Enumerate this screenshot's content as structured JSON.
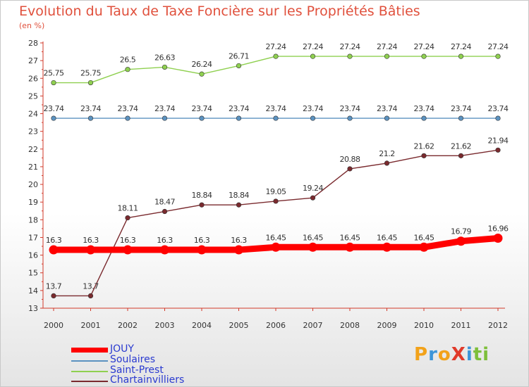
{
  "title": "Evolution du Taux de Taxe Foncière sur les Propriétés Bâties",
  "subtitle": "(en %)",
  "logo": {
    "parts": [
      "P",
      "r",
      "o",
      "X",
      "i",
      "ti"
    ]
  },
  "chart_data": {
    "type": "line",
    "title": "Evolution du Taux de Taxe Foncière sur les Propriétés Bâties",
    "ylabel": "(en %)",
    "ylim": [
      13,
      28
    ],
    "yticks": [
      "13",
      "14",
      "15",
      "16",
      "17",
      "18",
      "19",
      "20",
      "21",
      "22",
      "23",
      "24",
      "25",
      "26",
      "27",
      "28"
    ],
    "x": [
      "2000",
      "2001",
      "2002",
      "2003",
      "2004",
      "2005",
      "2006",
      "2007",
      "2008",
      "2009",
      "2010",
      "2011",
      "2012"
    ],
    "grid": false,
    "legend": "bottom-left",
    "series": [
      {
        "name": "JOUY",
        "color": "#ff0000",
        "values": [
          16.3,
          16.3,
          16.3,
          16.3,
          16.3,
          16.3,
          16.45,
          16.45,
          16.45,
          16.45,
          16.45,
          16.79,
          16.96
        ],
        "labels": [
          "16.3",
          "16.3",
          "16.3",
          "16.3",
          "16.3",
          "16.3",
          "16.45",
          "16.45",
          "16.45",
          "16.45",
          "16.45",
          "16.79",
          "16.96"
        ]
      },
      {
        "name": "Soulaires",
        "color": "#5b92c0",
        "values": [
          23.74,
          23.74,
          23.74,
          23.74,
          23.74,
          23.74,
          23.74,
          23.74,
          23.74,
          23.74,
          23.74,
          23.74,
          23.74
        ],
        "labels": [
          "23.74",
          "23.74",
          "23.74",
          "23.74",
          "23.74",
          "23.74",
          "23.74",
          "23.74",
          "23.74",
          "23.74",
          "23.74",
          "23.74",
          "23.74"
        ]
      },
      {
        "name": "Saint-Prest",
        "color": "#8fd050",
        "values": [
          25.75,
          25.75,
          26.5,
          26.63,
          26.24,
          26.71,
          27.24,
          27.24,
          27.24,
          27.24,
          27.24,
          27.24,
          27.24
        ],
        "labels": [
          "25.75",
          "25.75",
          "26.5",
          "26.63",
          "26.24",
          "26.71",
          "27.24",
          "27.24",
          "27.24",
          "27.24",
          "27.24",
          "27.24",
          "27.24"
        ]
      },
      {
        "name": "Chartainvilliers",
        "color": "#7a2a2e",
        "values": [
          13.7,
          13.7,
          18.11,
          18.47,
          18.84,
          18.84,
          19.05,
          19.24,
          20.88,
          21.2,
          21.62,
          21.62,
          21.94
        ],
        "labels": [
          "13.7",
          "13.7",
          "18.11",
          "18.47",
          "18.84",
          "18.84",
          "19.05",
          "19.24",
          "20.88",
          "21.2",
          "21.62",
          "21.62",
          "21.94"
        ]
      }
    ]
  }
}
